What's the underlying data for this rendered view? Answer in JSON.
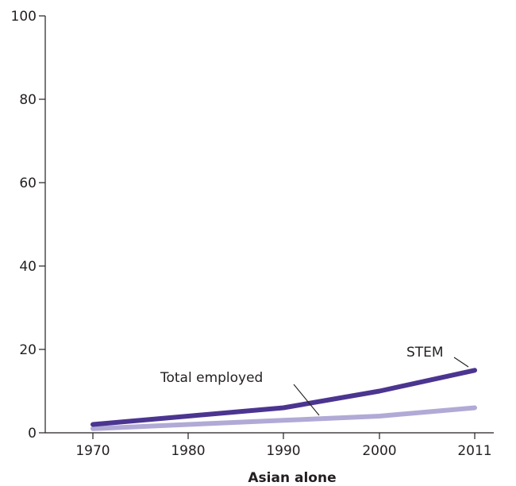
{
  "chart_data": {
    "type": "line",
    "x": [
      "1970",
      "1980",
      "1990",
      "2000",
      "2011"
    ],
    "xlabel": "Asian alone",
    "ylabel": "",
    "ylim": [
      0,
      100
    ],
    "yticks": [
      "0",
      "20",
      "40",
      "60",
      "80",
      "100"
    ],
    "grid": false,
    "series": [
      {
        "name": "STEM",
        "values": [
          2,
          4,
          6,
          10,
          15
        ],
        "color": "#4b3590"
      },
      {
        "name": "Total employed",
        "values": [
          1,
          2,
          3,
          4,
          6
        ],
        "color": "#b1aad6"
      }
    ]
  }
}
